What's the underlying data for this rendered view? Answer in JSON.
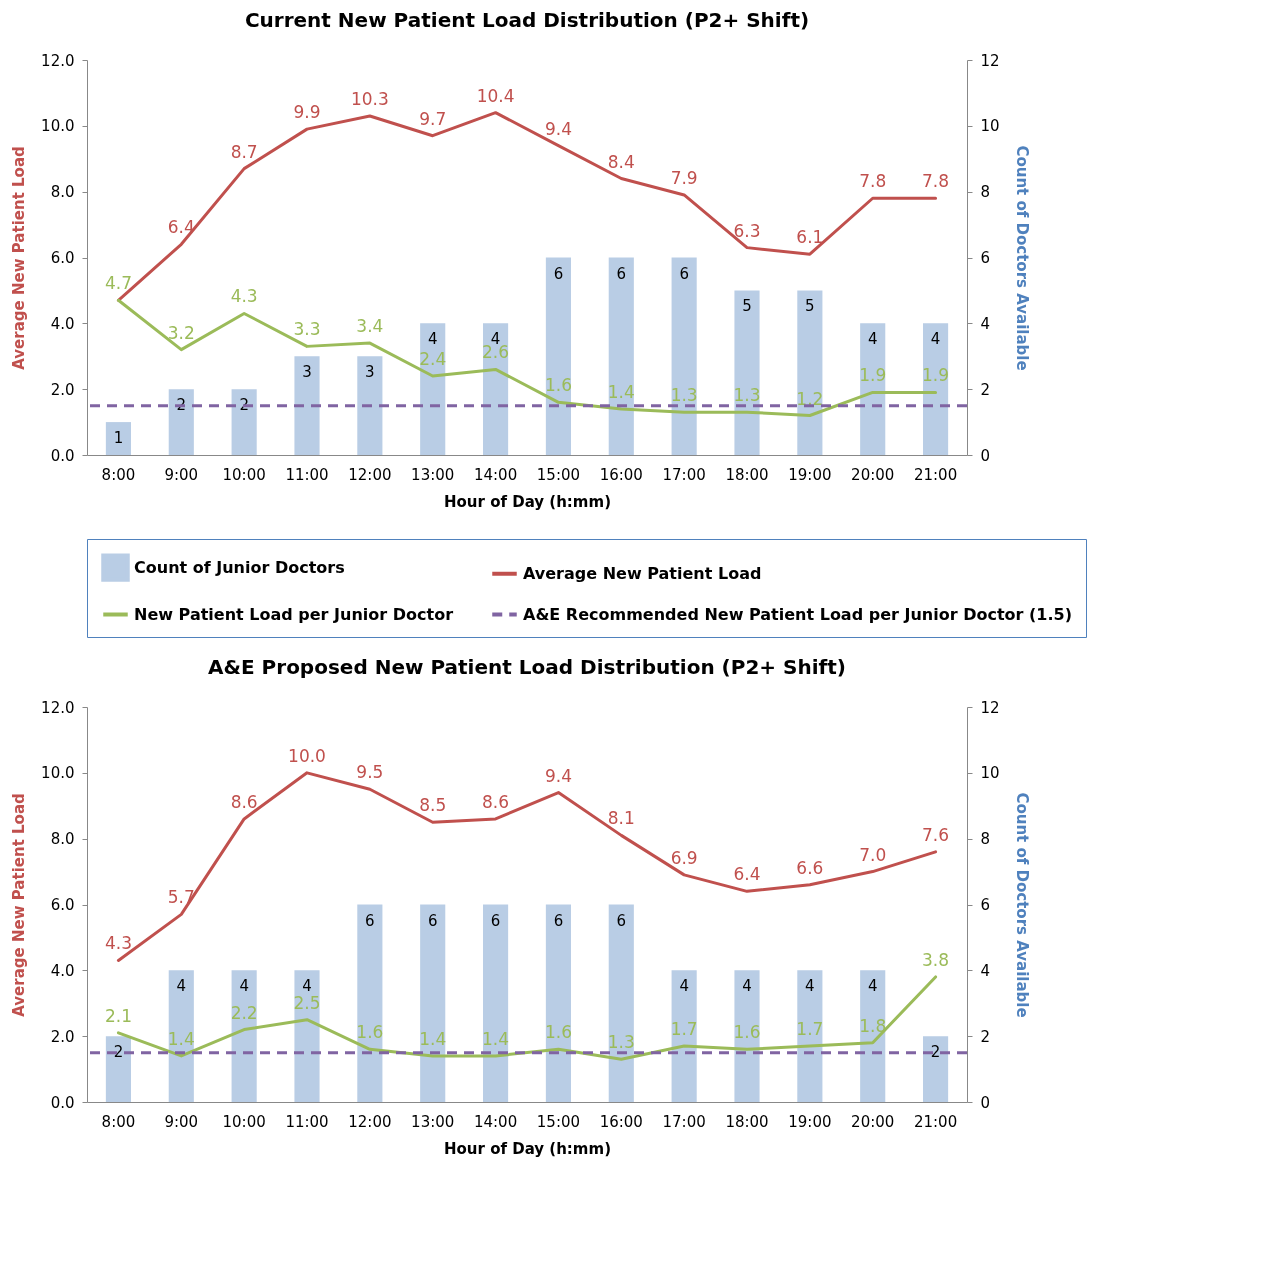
{
  "chart_data": [
    {
      "type": "bar",
      "title": "Current New Patient Load Distribution (P2+ Shift)",
      "xlabel": "Hour of Day (h:mm)",
      "ylabel": "Average New Patient Load",
      "y2label": "Count of Doctors Available",
      "categories": [
        "8:00",
        "9:00",
        "10:00",
        "11:00",
        "12:00",
        "13:00",
        "14:00",
        "15:00",
        "16:00",
        "17:00",
        "18:00",
        "19:00",
        "20:00",
        "21:00"
      ],
      "series": [
        {
          "name": "Count of Junior Doctors",
          "type": "bar",
          "axis": "y2",
          "color": "#b9cde5",
          "values": [
            1,
            2,
            2,
            3,
            3,
            4,
            4,
            6,
            6,
            6,
            5,
            5,
            4,
            4
          ],
          "value_labels": [
            "1",
            "2",
            "2",
            "3",
            "3",
            "4",
            "4",
            "6",
            "6",
            "6",
            "5",
            "5",
            "4",
            "4"
          ]
        },
        {
          "name": "Average New Patient Load",
          "type": "line",
          "color": "#c0504d",
          "values": [
            4.7,
            6.4,
            8.7,
            9.9,
            10.3,
            9.7,
            10.4,
            9.4,
            8.4,
            7.9,
            6.3,
            6.1,
            7.8,
            7.8
          ],
          "value_labels": [
            null,
            "6.4",
            "8.7",
            "9.9",
            "10.3",
            "9.7",
            "10.4",
            "9.4",
            "8.4",
            "7.9",
            "6.3",
            "6.1",
            "7.8",
            "7.8"
          ]
        },
        {
          "name": "New Patient Load per Junior Doctor",
          "type": "line",
          "color": "#9bbb59",
          "values": [
            4.7,
            3.2,
            4.3,
            3.3,
            3.4,
            2.4,
            2.6,
            1.6,
            1.4,
            1.3,
            1.3,
            1.2,
            1.9,
            1.9
          ],
          "value_labels": [
            "4.7",
            "3.2",
            "4.3",
            "3.3",
            "3.4",
            "2.4",
            "2.6",
            "1.6",
            "1.4",
            "1.3",
            "1.3",
            "1.2",
            "1.9",
            "1.9"
          ]
        }
      ],
      "ref_lines": [
        {
          "axis": "y",
          "value": 1.5,
          "label": "A&E Recommended New Patient Load per Junior Doctor (1.5)",
          "color": "#8064a2",
          "line_style": "dashed"
        }
      ],
      "ylim": [
        0,
        12
      ],
      "yticks": [
        {
          "value": 0,
          "label": "0.0"
        },
        {
          "value": 2,
          "label": "2.0"
        },
        {
          "value": 4,
          "label": "4.0"
        },
        {
          "value": 6,
          "label": "6.0"
        },
        {
          "value": 8,
          "label": "8.0"
        },
        {
          "value": 10,
          "label": "10.0"
        },
        {
          "value": 12,
          "label": "12.0"
        }
      ],
      "y2lim": [
        0,
        12
      ],
      "y2ticks": [
        0,
        2,
        4,
        6,
        8,
        10,
        12
      ],
      "legend": "bottom",
      "marker": "none",
      "line_style": "solid"
    },
    {
      "type": "bar",
      "title": "A&E Proposed New Patient Load Distribution (P2+ Shift)",
      "xlabel": "Hour of Day (h:mm)",
      "ylabel": "Average New Patient Load",
      "y2label": "Count of Doctors Available",
      "categories": [
        "8:00",
        "9:00",
        "10:00",
        "11:00",
        "12:00",
        "13:00",
        "14:00",
        "15:00",
        "16:00",
        "17:00",
        "18:00",
        "19:00",
        "20:00",
        "21:00"
      ],
      "series": [
        {
          "type": "bar",
          "axis": "y2",
          "color": "#b9cde5",
          "values": [
            2,
            4,
            4,
            4,
            6,
            6,
            6,
            6,
            6,
            4,
            4,
            4,
            4,
            2
          ],
          "value_labels": [
            "2",
            "4",
            "4",
            "4",
            "6",
            "6",
            "6",
            "6",
            "6",
            "4",
            "4",
            "4",
            "4",
            "2"
          ]
        },
        {
          "type": "line",
          "color": "#c0504d",
          "values": [
            4.3,
            5.7,
            8.6,
            10.0,
            9.5,
            8.5,
            8.6,
            9.4,
            8.1,
            6.9,
            6.4,
            6.6,
            7.0,
            7.6
          ],
          "value_labels": [
            "4.3",
            "5.7",
            "8.6",
            "10.0",
            "9.5",
            "8.5",
            "8.6",
            "9.4",
            "8.1",
            "6.9",
            "6.4",
            "6.6",
            "7.0",
            "7.6"
          ]
        },
        {
          "type": "line",
          "color": "#9bbb59",
          "values": [
            2.1,
            1.4,
            2.2,
            2.5,
            1.6,
            1.4,
            1.4,
            1.6,
            1.3,
            1.7,
            1.6,
            1.7,
            1.8,
            3.8
          ],
          "value_labels": [
            "2.1",
            "1.4",
            "2.2",
            "2.5",
            "1.6",
            "1.4",
            "1.4",
            "1.6",
            "1.3",
            "1.7",
            "1.6",
            "1.7",
            "1.8",
            "3.8"
          ]
        }
      ],
      "ref_lines": [
        {
          "axis": "y",
          "value": 1.5,
          "color": "#8064a2",
          "line_style": "dashed"
        }
      ],
      "ylim": [
        0,
        12
      ],
      "yticks": [
        {
          "value": 0,
          "label": "0.0"
        },
        {
          "value": 2,
          "label": "2.0"
        },
        {
          "value": 4,
          "label": "4.0"
        },
        {
          "value": 6,
          "label": "6.0"
        },
        {
          "value": 8,
          "label": "8.0"
        },
        {
          "value": 10,
          "label": "10.0"
        },
        {
          "value": 12,
          "label": "12.0"
        }
      ],
      "y2lim": [
        0,
        12
      ],
      "y2ticks": [
        0,
        2,
        4,
        6,
        8,
        10,
        12
      ],
      "marker": "none",
      "line_style": "solid"
    }
  ]
}
